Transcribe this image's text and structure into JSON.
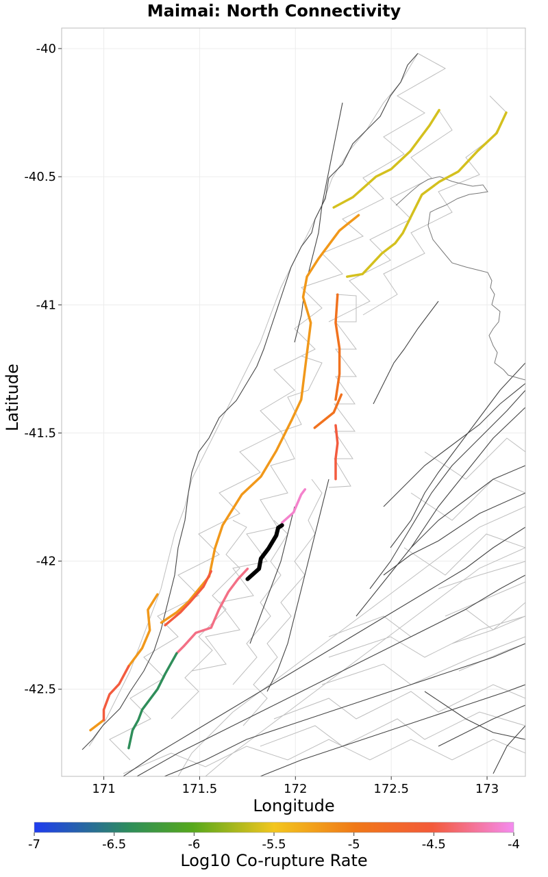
{
  "chart_data": {
    "type": "map",
    "title": "Maimai: North Connectivity",
    "xlabel": "Longitude",
    "ylabel": "Latitude",
    "xlim": [
      170.78,
      173.2
    ],
    "ylim": [
      -42.84,
      -39.92
    ],
    "x_ticks": [
      171,
      171.5,
      172,
      172.5,
      173
    ],
    "x_tick_labels": [
      "171",
      "171.5",
      "172",
      "172.5",
      "173"
    ],
    "y_ticks": [
      -40,
      -40.5,
      -41,
      -41.5,
      -42,
      -42.5
    ],
    "y_tick_labels": [
      "-40",
      "-40.5",
      "-41",
      "-41.5",
      "-42",
      "-42.5"
    ],
    "grid": true,
    "colorbar": {
      "label": "Log10 Co-rupture Rate",
      "range": [
        -7,
        -4
      ],
      "ticks": [
        "-7",
        "-6.5",
        "-6",
        "-5.5",
        "-5",
        "-4.5",
        "-4"
      ],
      "colors": [
        "#1f3cf0",
        "#2f8e5a",
        "#56a81c",
        "#f3c61e",
        "#f07818",
        "#f35a3a",
        "#f48cf0"
      ]
    },
    "source_fault": {
      "name": "Maimai",
      "color": "#000000",
      "trace": [
        [
          171.75,
          -42.07
        ],
        [
          171.81,
          -42.03
        ],
        [
          171.82,
          -41.99
        ],
        [
          171.86,
          -41.95
        ],
        [
          171.9,
          -41.9
        ],
        [
          171.91,
          -41.87
        ],
        [
          171.93,
          -41.86
        ]
      ]
    },
    "ruptured_faults": [
      {
        "log_rate": -5.6,
        "trace": [
          [
            172.2,
            -40.62
          ],
          [
            172.3,
            -40.58
          ],
          [
            172.42,
            -40.5
          ],
          [
            172.5,
            -40.47
          ],
          [
            172.6,
            -40.4
          ],
          [
            172.7,
            -40.3
          ],
          [
            172.75,
            -40.24
          ]
        ]
      },
      {
        "log_rate": -5.6,
        "trace": [
          [
            172.27,
            -40.89
          ],
          [
            172.35,
            -40.88
          ],
          [
            172.4,
            -40.84
          ],
          [
            172.45,
            -40.8
          ],
          [
            172.52,
            -40.76
          ],
          [
            172.56,
            -40.72
          ],
          [
            172.6,
            -40.66
          ],
          [
            172.66,
            -40.57
          ],
          [
            172.75,
            -40.52
          ],
          [
            172.85,
            -40.48
          ],
          [
            172.95,
            -40.4
          ],
          [
            173.05,
            -40.33
          ],
          [
            173.1,
            -40.25
          ]
        ]
      },
      {
        "log_rate": -5.2,
        "trace": [
          [
            172.33,
            -40.65
          ],
          [
            172.23,
            -40.71
          ],
          [
            172.12,
            -40.82
          ],
          [
            172.06,
            -40.89
          ],
          [
            172.04,
            -40.97
          ],
          [
            172.08,
            -41.07
          ],
          [
            172.05,
            -41.25
          ],
          [
            172.03,
            -41.37
          ],
          [
            171.98,
            -41.45
          ],
          [
            171.9,
            -41.57
          ],
          [
            171.82,
            -41.67
          ],
          [
            171.72,
            -41.74
          ],
          [
            171.62,
            -41.86
          ],
          [
            171.58,
            -41.95
          ],
          [
            171.55,
            -42.06
          ],
          [
            171.44,
            -42.16
          ],
          [
            171.38,
            -42.2
          ],
          [
            171.3,
            -42.24
          ]
        ]
      },
      {
        "log_rate": -5.2,
        "trace": [
          [
            171.28,
            -42.13
          ],
          [
            171.23,
            -42.19
          ],
          [
            171.24,
            -42.27
          ],
          [
            171.2,
            -42.34
          ],
          [
            171.13,
            -42.41
          ]
        ]
      },
      {
        "log_rate": -5.2,
        "trace": [
          [
            171.0,
            -42.62
          ],
          [
            170.93,
            -42.66
          ]
        ]
      },
      {
        "log_rate": -4.9,
        "trace": [
          [
            172.22,
            -40.96
          ],
          [
            172.21,
            -41.07
          ],
          [
            172.23,
            -41.17
          ],
          [
            172.23,
            -41.27
          ],
          [
            172.21,
            -41.37
          ]
        ]
      },
      {
        "log_rate": -4.9,
        "trace": [
          [
            172.24,
            -41.35
          ],
          [
            172.2,
            -41.42
          ],
          [
            172.1,
            -41.48
          ]
        ]
      },
      {
        "log_rate": -4.5,
        "trace": [
          [
            172.21,
            -41.47
          ],
          [
            172.22,
            -41.54
          ],
          [
            172.21,
            -41.6
          ],
          [
            172.21,
            -41.68
          ]
        ]
      },
      {
        "log_rate": -4.5,
        "trace": [
          [
            171.13,
            -42.41
          ],
          [
            171.08,
            -42.48
          ],
          [
            171.03,
            -42.52
          ],
          [
            171.0,
            -42.58
          ],
          [
            171.0,
            -42.62
          ]
        ]
      },
      {
        "log_rate": -4.5,
        "trace": [
          [
            171.56,
            -42.04
          ],
          [
            171.52,
            -42.1
          ],
          [
            171.45,
            -42.16
          ],
          [
            171.4,
            -42.2
          ],
          [
            171.32,
            -42.25
          ]
        ]
      },
      {
        "log_rate": -4.3,
        "trace": [
          [
            171.75,
            -42.03
          ],
          [
            171.7,
            -42.07
          ],
          [
            171.65,
            -42.12
          ],
          [
            171.6,
            -42.19
          ],
          [
            171.56,
            -42.26
          ],
          [
            171.48,
            -42.28
          ],
          [
            171.42,
            -42.33
          ],
          [
            171.38,
            -42.36
          ]
        ]
      },
      {
        "log_rate": -4.1,
        "trace": [
          [
            171.93,
            -41.85
          ],
          [
            171.99,
            -41.81
          ],
          [
            172.03,
            -41.74
          ],
          [
            172.05,
            -41.72
          ]
        ]
      },
      {
        "log_rate": -6.4,
        "trace": [
          [
            171.38,
            -42.36
          ],
          [
            171.32,
            -42.44
          ],
          [
            171.28,
            -42.5
          ],
          [
            171.2,
            -42.58
          ],
          [
            171.18,
            -42.62
          ],
          [
            171.15,
            -42.66
          ],
          [
            171.13,
            -42.73
          ]
        ]
      }
    ]
  }
}
